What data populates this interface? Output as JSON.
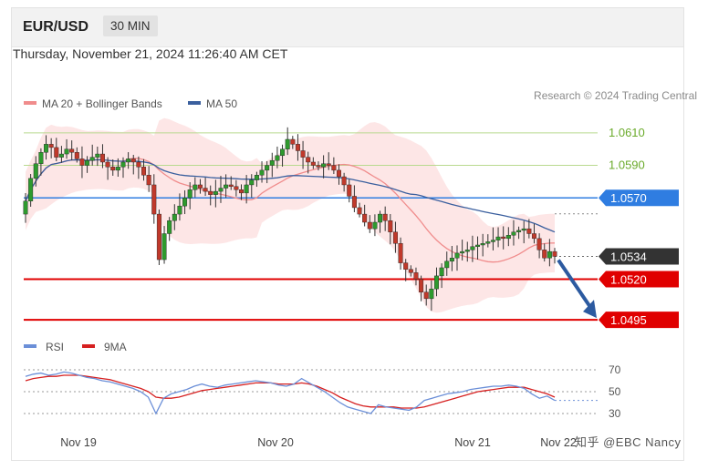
{
  "header": {
    "pair": "EUR/USD",
    "timeframe": "30 MIN"
  },
  "datetime": "Thursday, November 21, 2024 11:26:40 AM CET",
  "credit": "Research © 2024 Trading Central",
  "watermark": "知乎 @EBC Nancy",
  "colors": {
    "ma20": "#f08c8c",
    "ma50": "#3a5f9e",
    "band": "#fde2e2",
    "bull": "#2e9a2e",
    "bear": "#c0392b",
    "green_level": "#6aaa2a",
    "blue_level": "#2f7de1",
    "red_level": "#e00000",
    "current": "#333333",
    "arrow": "#2c5aa0",
    "rsi": "#6b8fd8",
    "rsi_ma": "#d62020"
  },
  "chart_data": [
    {
      "type": "candlestick",
      "legend": [
        {
          "name": "MA 20 + Bollinger Bands"
        },
        {
          "name": "MA 50"
        }
      ],
      "x_labels": [
        "Nov 19",
        "Nov 20",
        "Nov 21",
        "Nov 22"
      ],
      "ylim": [
        1.049,
        1.062
      ],
      "close_pattern": [
        1.0568,
        1.0582,
        1.0591,
        1.0598,
        1.0603,
        1.0601,
        1.0595,
        1.0597,
        1.06,
        1.0598,
        1.0594,
        1.059,
        1.0593,
        1.0595,
        1.0597,
        1.0592,
        1.0589,
        1.0587,
        1.0589,
        1.0592,
        1.0594,
        1.0592,
        1.0589,
        1.0584,
        1.0578,
        1.056,
        1.0532,
        1.0548,
        1.0556,
        1.056,
        1.0565,
        1.057,
        1.0575,
        1.0578,
        1.0576,
        1.0574,
        1.0572,
        1.0574,
        1.0576,
        1.0578,
        1.0577,
        1.0575,
        1.0573,
        1.0578,
        1.0581,
        1.0584,
        1.0587,
        1.059,
        1.0593,
        1.0596,
        1.06,
        1.0606,
        1.0603,
        1.0599,
        1.0595,
        1.0592,
        1.059,
        1.0589,
        1.0591,
        1.059,
        1.0587,
        1.0583,
        1.0578,
        1.0571,
        1.0564,
        1.056,
        1.0555,
        1.0551,
        1.0555,
        1.056,
        1.0556,
        1.0549,
        1.0542,
        1.053,
        1.0526,
        1.0524,
        1.052,
        1.0512,
        1.0508,
        1.0514,
        1.0522,
        1.0527,
        1.0531,
        1.0533,
        1.0536,
        1.0537,
        1.0538,
        1.054,
        1.0541,
        1.0542,
        1.0543,
        1.0544,
        1.0546,
        1.0545,
        1.0547,
        1.0549,
        1.055,
        1.0551,
        1.0548,
        1.0545,
        1.0538,
        1.0533,
        1.0537,
        1.0534
      ],
      "levels": [
        {
          "value": 1.061,
          "label": "1.0610",
          "style": "green"
        },
        {
          "value": 1.059,
          "label": "1.0590",
          "style": "green"
        },
        {
          "value": 1.057,
          "label": "1.0570",
          "style": "blue"
        },
        {
          "value": 1.0534,
          "label": "1.0534",
          "style": "current"
        },
        {
          "value": 1.052,
          "label": "1.0520",
          "style": "red"
        },
        {
          "value": 1.0495,
          "label": "1.0495",
          "style": "red"
        }
      ],
      "forecast_target": 1.0495
    },
    {
      "type": "line",
      "legend": [
        {
          "name": "RSI"
        },
        {
          "name": "9MA"
        }
      ],
      "ylim": [
        25,
        75
      ],
      "y_ticks": [
        "70",
        "50",
        "30"
      ],
      "rsi": [
        64,
        66,
        67,
        65,
        66,
        68,
        67,
        65,
        63,
        62,
        60,
        59,
        57,
        55,
        53,
        50,
        45,
        30,
        44,
        48,
        50,
        52,
        55,
        57,
        55,
        54,
        56,
        57,
        58,
        59,
        60,
        59,
        58,
        56,
        55,
        57,
        62,
        58,
        54,
        50,
        45,
        40,
        36,
        34,
        32,
        30,
        38,
        36,
        35,
        34,
        33,
        36,
        42,
        44,
        46,
        48,
        49,
        50,
        52,
        53,
        54,
        55,
        55,
        56,
        55,
        53,
        48,
        44,
        46,
        42
      ],
      "rsi_ma": [
        60,
        62,
        63,
        64,
        64,
        65,
        65,
        65,
        64,
        63,
        62,
        61,
        59,
        57,
        55,
        53,
        50,
        45,
        44,
        44,
        45,
        47,
        49,
        51,
        52,
        53,
        54,
        55,
        56,
        57,
        58,
        58,
        58,
        57,
        57,
        57,
        58,
        57,
        55,
        52,
        49,
        45,
        42,
        39,
        37,
        36,
        36,
        36,
        36,
        35,
        35,
        35,
        36,
        38,
        40,
        42,
        44,
        46,
        48,
        50,
        51,
        52,
        53,
        54,
        54,
        54,
        52,
        50,
        48,
        45
      ]
    }
  ]
}
